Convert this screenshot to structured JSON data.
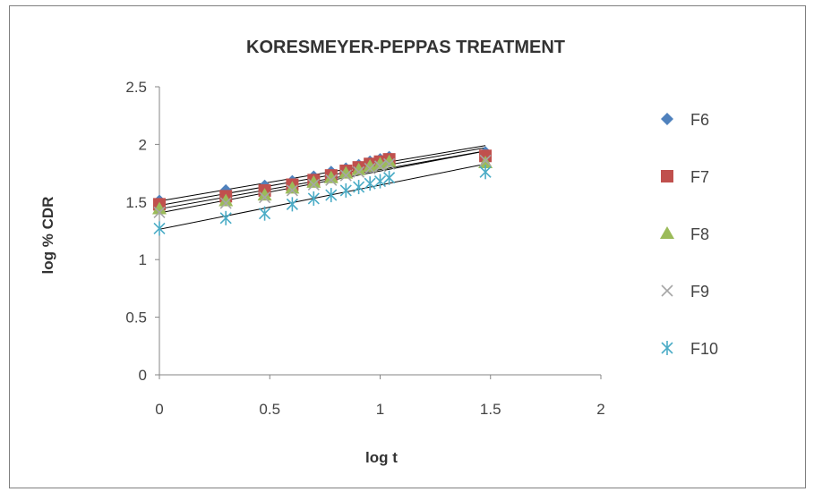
{
  "chart_data": {
    "type": "scatter",
    "title": "KORESMEYER-PEPPAS TREATMENT",
    "xlabel": "log t",
    "ylabel": "log % CDR",
    "xlim": [
      0,
      2
    ],
    "ylim": [
      0,
      2.5
    ],
    "xticks": [
      "0",
      "0.5",
      "1",
      "1.5",
      "2"
    ],
    "yticks": [
      "0",
      "0.5",
      "1",
      "1.5",
      "2",
      "2.5"
    ],
    "grid": false,
    "legend": "right",
    "trendlines": true,
    "x": [
      0,
      0.301,
      0.477,
      0.602,
      0.699,
      0.778,
      0.845,
      0.903,
      0.954,
      1.0,
      1.041,
      1.477
    ],
    "series": [
      {
        "name": "F6",
        "marker": "diamond",
        "color": "#4f81bd",
        "values": [
          1.51,
          1.6,
          1.64,
          1.68,
          1.72,
          1.76,
          1.79,
          1.82,
          1.85,
          1.87,
          1.89,
          1.93
        ]
      },
      {
        "name": "F7",
        "marker": "square",
        "color": "#c0504d",
        "values": [
          1.48,
          1.55,
          1.6,
          1.65,
          1.69,
          1.73,
          1.77,
          1.8,
          1.83,
          1.85,
          1.87,
          1.9
        ]
      },
      {
        "name": "F8",
        "marker": "triangle",
        "color": "#9bbb59",
        "values": [
          1.44,
          1.51,
          1.56,
          1.62,
          1.67,
          1.71,
          1.75,
          1.78,
          1.81,
          1.83,
          1.85,
          1.84
        ]
      },
      {
        "name": "F9",
        "marker": "x",
        "color": "#a6a6a6",
        "values": [
          1.41,
          1.49,
          1.54,
          1.6,
          1.65,
          1.69,
          1.73,
          1.76,
          1.79,
          1.81,
          1.83,
          1.86
        ]
      },
      {
        "name": "F10",
        "marker": "asterisk",
        "color": "#4bacc6",
        "values": [
          1.27,
          1.36,
          1.4,
          1.48,
          1.53,
          1.56,
          1.6,
          1.63,
          1.66,
          1.68,
          1.71,
          1.76
        ]
      }
    ]
  }
}
